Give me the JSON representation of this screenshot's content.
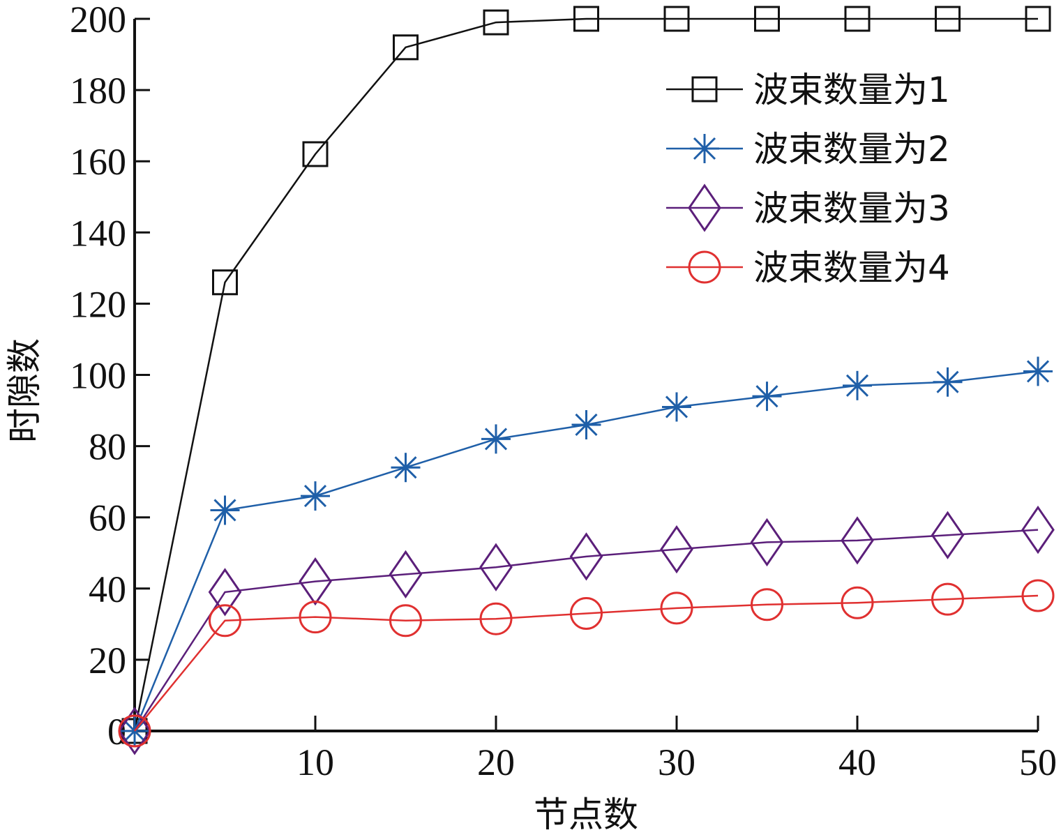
{
  "chart_data": {
    "type": "line",
    "xlabel": "节点数",
    "ylabel": "时隙数",
    "xlim": [
      0,
      50
    ],
    "ylim": [
      0,
      200
    ],
    "xticks": [
      10,
      20,
      30,
      40,
      50
    ],
    "yticks": [
      0,
      20,
      40,
      60,
      80,
      100,
      120,
      140,
      160,
      180,
      200
    ],
    "grid": false,
    "legend_position": "top-right",
    "x": [
      0,
      5,
      10,
      15,
      20,
      25,
      30,
      35,
      40,
      45,
      50
    ],
    "series": [
      {
        "name": "波束数量为1",
        "marker": "square",
        "color": "#111111",
        "values": [
          0,
          126,
          162,
          192,
          199,
          200,
          200,
          200,
          200,
          200,
          200
        ]
      },
      {
        "name": "波束数量为2",
        "marker": "asterisk",
        "color": "#1f5fa8",
        "values": [
          0,
          62,
          66,
          74,
          82,
          86,
          91,
          94,
          97,
          98,
          101
        ]
      },
      {
        "name": "波束数量为3",
        "marker": "diamond",
        "color": "#5b1f7a",
        "values": [
          0,
          39,
          42,
          44,
          46,
          49,
          51,
          53,
          53.5,
          55,
          56.5
        ]
      },
      {
        "name": "波束数量为4",
        "marker": "circle",
        "color": "#e03030",
        "values": [
          0,
          31,
          32,
          31,
          31.5,
          33,
          34.5,
          35.5,
          36,
          37,
          38
        ]
      }
    ]
  }
}
